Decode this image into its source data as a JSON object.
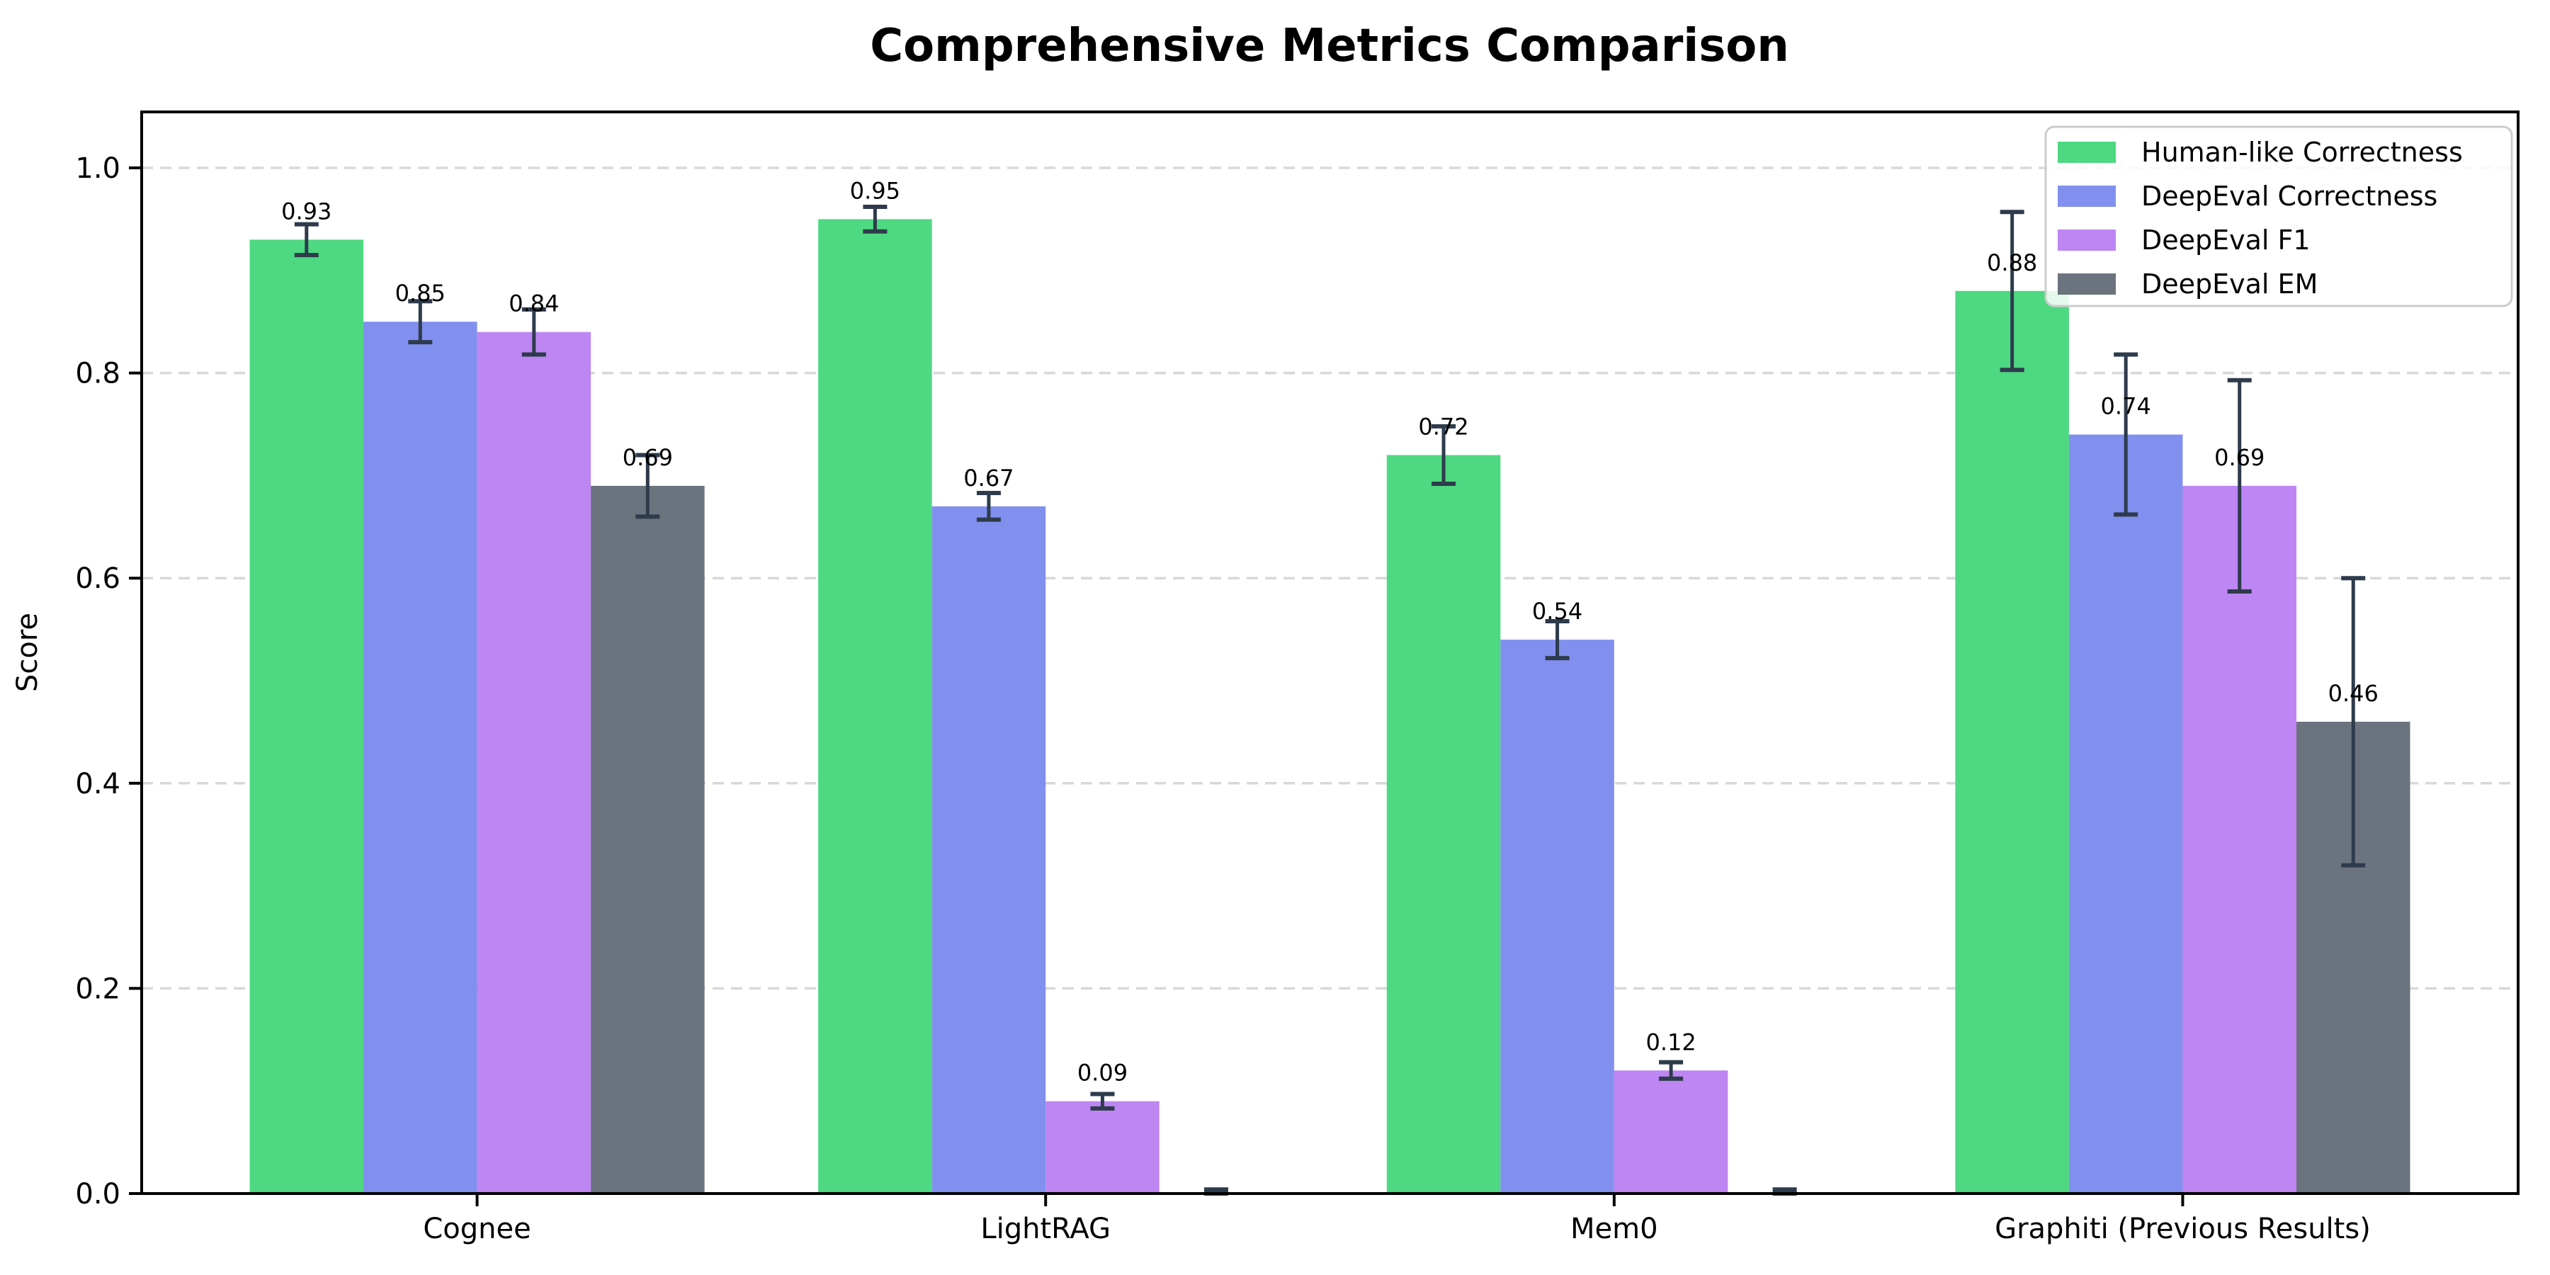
{
  "chart_data": {
    "type": "bar",
    "title": "Comprehensive Metrics Comparison",
    "xlabel": "",
    "ylabel": "Score",
    "categories": [
      "Cognee",
      "LightRAG",
      "Mem0",
      "Graphiti (Previous Results)"
    ],
    "series": [
      {
        "name": "Human-like Correctness",
        "color": "#4ed882",
        "values": [
          0.93,
          0.95,
          0.72,
          0.88
        ],
        "errors": [
          0.015,
          0.012,
          0.028,
          0.077
        ],
        "labels": [
          "0.93",
          "0.95",
          "0.72",
          "0.88"
        ]
      },
      {
        "name": "DeepEval Correctness",
        "color": "#8190ee",
        "values": [
          0.85,
          0.67,
          0.54,
          0.74
        ],
        "errors": [
          0.02,
          0.013,
          0.018,
          0.078
        ],
        "labels": [
          "0.85",
          "0.67",
          "0.54",
          "0.74"
        ]
      },
      {
        "name": "DeepEval F1",
        "color": "#bd86f2",
        "values": [
          0.84,
          0.09,
          0.12,
          0.69
        ],
        "errors": [
          0.022,
          0.007,
          0.008,
          0.103
        ],
        "labels": [
          "0.84",
          "0.09",
          "0.12",
          "0.69"
        ]
      },
      {
        "name": "DeepEval EM",
        "color": "#6b737e",
        "values": [
          0.69,
          0.0,
          0.0,
          0.46
        ],
        "errors": [
          0.03,
          0.004,
          0.004,
          0.14
        ],
        "labels": [
          "0.69",
          "",
          "",
          "0.46"
        ]
      }
    ],
    "yticks": [
      0.0,
      0.2,
      0.4,
      0.6,
      0.8,
      1.0
    ],
    "ytick_labels": [
      "0.0",
      "0.2",
      "0.4",
      "0.6",
      "0.8",
      "1.0"
    ],
    "ylim": [
      0,
      1.053
    ],
    "grid": "horizontal-dashed",
    "legend_position": "upper right",
    "legend_entries": [
      "Human-like Correctness",
      "DeepEval Correctness",
      "DeepEval F1",
      "DeepEval EM"
    ],
    "errorbar_color": "#2e3b4c",
    "grid_color": "#d8d8d8",
    "spine_color": "#000000",
    "legend_border_color": "#cccccc",
    "legend_fill_color": "#ffffff"
  }
}
